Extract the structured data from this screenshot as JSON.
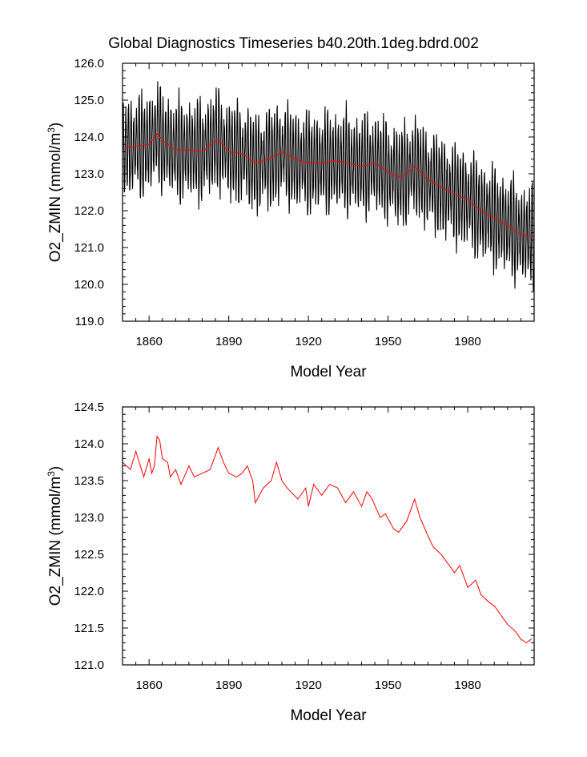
{
  "title": "Global Diagnostics Timeseries b40.20th.1deg.bdrd.002",
  "colors": {
    "monthly": "#000000",
    "annual": "#ff0000"
  },
  "chart_data": [
    {
      "type": "line",
      "xlabel": "Model Year",
      "ylabel": "O2_ZMIN (mmol/m",
      "ylabel_sup": "3",
      "ylabel_end": ")",
      "xlim": [
        1850,
        2005
      ],
      "ylim": [
        119.0,
        126.0
      ],
      "x_ticks": [
        "1860",
        "1890",
        "1920",
        "1950",
        "1980"
      ],
      "y_ticks": [
        "119.0",
        "120.0",
        "121.0",
        "122.0",
        "123.0",
        "124.0",
        "125.0",
        "126.0"
      ],
      "series": [
        {
          "role": "monthly",
          "color": "#000000",
          "seasonal_amplitude": 1.1,
          "x": [
            1850,
            1855,
            1860,
            1863,
            1865,
            1870,
            1875,
            1880,
            1886,
            1890,
            1895,
            1900,
            1905,
            1910,
            1915,
            1920,
            1925,
            1930,
            1935,
            1940,
            1945,
            1950,
            1955,
            1960,
            1965,
            1970,
            1975,
            1980,
            1985,
            1990,
            1995,
            2000,
            2005
          ],
          "y": [
            123.7,
            123.75,
            123.8,
            124.1,
            123.9,
            123.65,
            123.65,
            123.6,
            123.95,
            123.6,
            123.55,
            123.3,
            123.4,
            123.6,
            123.4,
            123.3,
            123.3,
            123.35,
            123.3,
            123.2,
            123.3,
            123.05,
            122.9,
            123.2,
            122.85,
            122.65,
            122.45,
            122.3,
            122.0,
            121.8,
            121.6,
            121.35,
            121.3
          ]
        },
        {
          "role": "annual",
          "color": "#ff0000",
          "x": [
            1850,
            1855,
            1860,
            1863,
            1865,
            1870,
            1875,
            1880,
            1886,
            1890,
            1895,
            1900,
            1905,
            1910,
            1915,
            1920,
            1925,
            1930,
            1935,
            1940,
            1945,
            1950,
            1955,
            1960,
            1965,
            1970,
            1975,
            1980,
            1985,
            1990,
            1995,
            2000,
            2005
          ],
          "y": [
            123.7,
            123.75,
            123.8,
            124.1,
            123.9,
            123.65,
            123.65,
            123.6,
            123.95,
            123.6,
            123.55,
            123.3,
            123.4,
            123.6,
            123.4,
            123.3,
            123.3,
            123.35,
            123.3,
            123.2,
            123.3,
            123.05,
            122.9,
            123.2,
            122.85,
            122.65,
            122.45,
            122.3,
            122.0,
            121.8,
            121.6,
            121.35,
            121.3
          ]
        }
      ]
    },
    {
      "type": "line",
      "xlabel": "Model Year",
      "ylabel": "O2_ZMIN (mmol/m",
      "ylabel_sup": "3",
      "ylabel_end": ")",
      "xlim": [
        1850,
        2005
      ],
      "ylim": [
        121.0,
        124.5
      ],
      "x_ticks": [
        "1860",
        "1890",
        "1920",
        "1950",
        "1980"
      ],
      "y_ticks": [
        "121.0",
        "121.5",
        "122.0",
        "122.5",
        "123.0",
        "123.5",
        "124.0",
        "124.5"
      ],
      "series": [
        {
          "role": "annual",
          "color": "#ff0000",
          "x": [
            1850,
            1853,
            1855,
            1858,
            1860,
            1861,
            1862,
            1863,
            1864,
            1865,
            1867,
            1868,
            1870,
            1872,
            1875,
            1877,
            1880,
            1883,
            1886,
            1888,
            1890,
            1893,
            1895,
            1897,
            1899,
            1900,
            1903,
            1906,
            1908,
            1910,
            1912,
            1916,
            1919,
            1920,
            1922,
            1925,
            1928,
            1931,
            1934,
            1937,
            1940,
            1942,
            1944,
            1947,
            1949,
            1952,
            1954,
            1957,
            1960,
            1962,
            1965,
            1967,
            1970,
            1972,
            1975,
            1977,
            1980,
            1983,
            1985,
            1988,
            1990,
            1993,
            1995,
            1998,
            2000,
            2002,
            2004
          ],
          "y": [
            123.75,
            123.65,
            123.9,
            123.55,
            123.8,
            123.6,
            123.7,
            124.1,
            124.05,
            123.8,
            123.75,
            123.55,
            123.65,
            123.45,
            123.7,
            123.55,
            123.6,
            123.65,
            123.95,
            123.75,
            123.6,
            123.55,
            123.6,
            123.7,
            123.5,
            123.2,
            123.4,
            123.5,
            123.75,
            123.5,
            123.4,
            123.25,
            123.4,
            123.15,
            123.45,
            123.3,
            123.45,
            123.4,
            123.2,
            123.35,
            123.15,
            123.35,
            123.25,
            123.0,
            123.05,
            122.85,
            122.8,
            122.95,
            123.25,
            123.0,
            122.75,
            122.6,
            122.5,
            122.4,
            122.25,
            122.35,
            122.05,
            122.15,
            121.95,
            121.85,
            121.8,
            121.65,
            121.55,
            121.45,
            121.35,
            121.3,
            121.35
          ]
        }
      ]
    }
  ]
}
